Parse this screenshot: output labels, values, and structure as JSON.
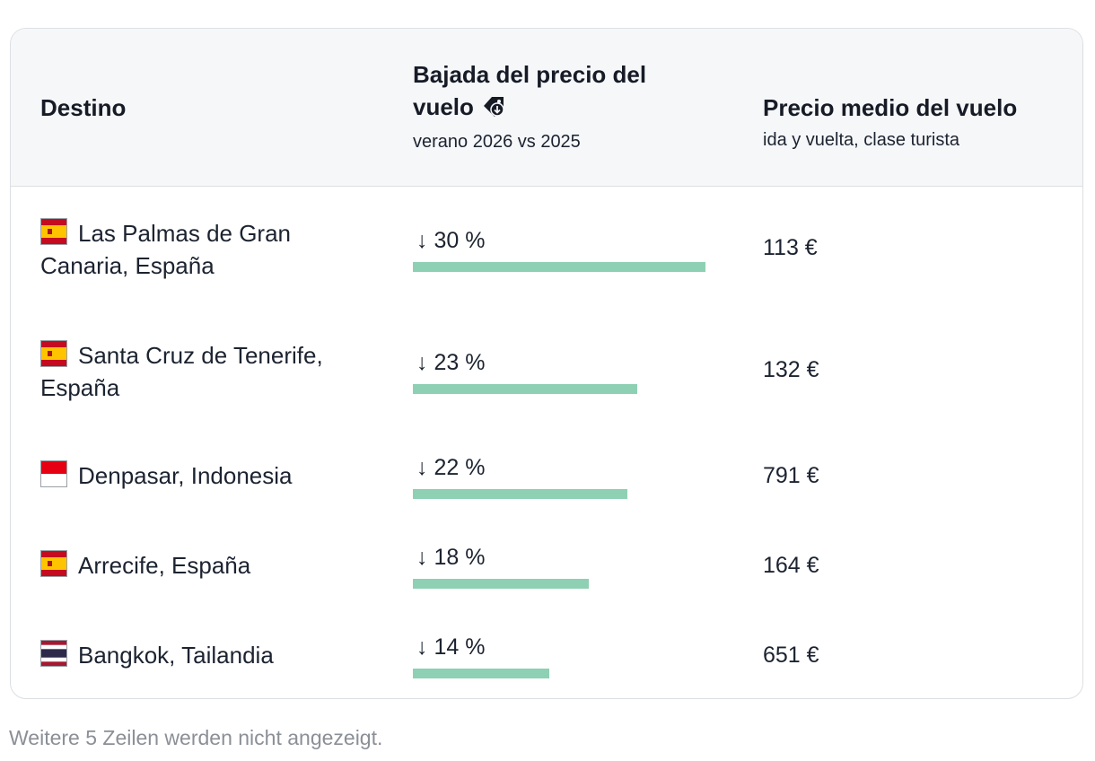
{
  "table": {
    "headers": {
      "destination": "Destino",
      "drop_title": "Bajada del precio del vuelo",
      "drop_sub": "verano 2026 vs 2025",
      "price_title": "Precio medio del vuelo",
      "price_sub": "ida y vuelta, clase turista"
    },
    "rows": [
      {
        "destination": "Las Palmas de Gran Canaria, España",
        "flag": "spain-flag-icon",
        "drop": "↓ 30 %",
        "drop_value": 30,
        "price": "113 €"
      },
      {
        "destination": "Santa Cruz de Tenerife, España",
        "flag": "spain-flag-icon",
        "drop": "↓ 23 %",
        "drop_value": 23,
        "price": "132 €"
      },
      {
        "destination": "Denpasar, Indonesia",
        "flag": "indonesia-flag-icon",
        "drop": "↓ 22 %",
        "drop_value": 22,
        "price": "791 €"
      },
      {
        "destination": "Arrecife, España",
        "flag": "spain-flag-icon",
        "drop": "↓ 18 %",
        "drop_value": 18,
        "price": "164 €"
      },
      {
        "destination": "Bangkok, Tailandia",
        "flag": "thailand-flag-icon",
        "drop": "↓ 14 %",
        "drop_value": 14,
        "price": "651 €"
      }
    ],
    "bar_max_value": 30,
    "bar_color": "#8ed0b3"
  },
  "footnote": "Weitere 5 Zeilen werden nicht angezeigt."
}
